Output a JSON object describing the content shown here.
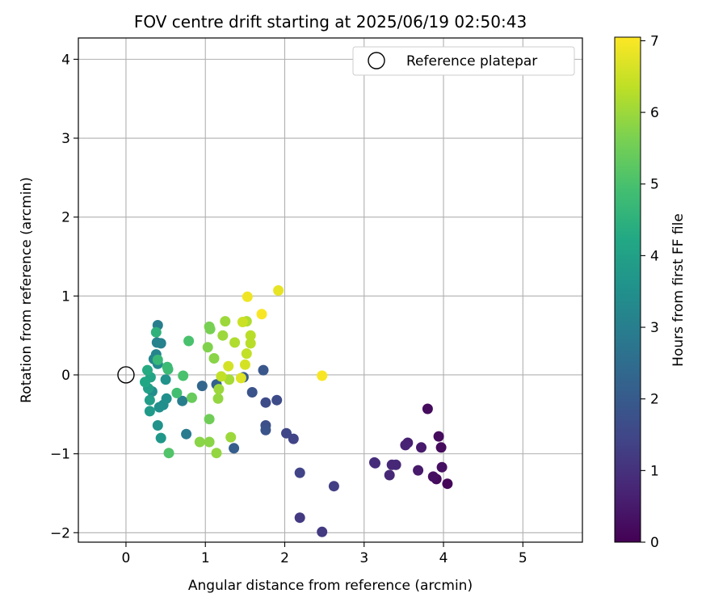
{
  "chart_data": {
    "type": "scatter",
    "title": "FOV centre drift starting at 2025/06/19 02:50:43",
    "xlabel": "Angular distance from reference (arcmin)",
    "ylabel": "Rotation from reference (arcmin)",
    "xlim": [
      -0.6,
      5.75
    ],
    "ylim": [
      -2.12,
      4.27
    ],
    "xticks": [
      "0",
      "1",
      "2",
      "3",
      "4",
      "5"
    ],
    "yticks": [
      "−2",
      "−1",
      "0",
      "1",
      "2",
      "3",
      "4"
    ],
    "grid": true,
    "legend": {
      "position": "top-right",
      "entries": [
        "Reference platepar"
      ]
    },
    "reference_point": {
      "x": 0,
      "y": 0
    },
    "colorbar": {
      "label": "Hours from first FF file",
      "colormap": "viridis",
      "range": [
        0,
        7.05
      ],
      "ticks": [
        "0",
        "1",
        "2",
        "3",
        "4",
        "5",
        "6",
        "7"
      ]
    },
    "points": [
      {
        "x": 4.05,
        "y": -1.38,
        "h": 0.1
      },
      {
        "x": 3.91,
        "y": -1.32,
        "h": 0.2
      },
      {
        "x": 3.87,
        "y": -1.29,
        "h": 0.3
      },
      {
        "x": 3.98,
        "y": -1.17,
        "h": 0.3
      },
      {
        "x": 3.97,
        "y": -0.92,
        "h": 0.2
      },
      {
        "x": 3.94,
        "y": -0.78,
        "h": 0.2
      },
      {
        "x": 3.8,
        "y": -0.43,
        "h": 0.2
      },
      {
        "x": 3.72,
        "y": -0.92,
        "h": 0.5
      },
      {
        "x": 3.68,
        "y": -1.21,
        "h": 0.5
      },
      {
        "x": 3.55,
        "y": -0.86,
        "h": 0.6
      },
      {
        "x": 3.52,
        "y": -0.89,
        "h": 0.7
      },
      {
        "x": 3.4,
        "y": -1.14,
        "h": 0.8
      },
      {
        "x": 3.35,
        "y": -1.14,
        "h": 0.8
      },
      {
        "x": 3.32,
        "y": -1.27,
        "h": 0.8
      },
      {
        "x": 3.14,
        "y": -1.12,
        "h": 0.9
      },
      {
        "x": 3.13,
        "y": -1.11,
        "h": 0.9
      },
      {
        "x": 2.47,
        "y": -1.99,
        "h": 1.2
      },
      {
        "x": 2.19,
        "y": -1.81,
        "h": 1.2
      },
      {
        "x": 2.62,
        "y": -1.41,
        "h": 1.3
      },
      {
        "x": 2.19,
        "y": -1.24,
        "h": 1.4
      },
      {
        "x": 2.11,
        "y": -0.81,
        "h": 1.4
      },
      {
        "x": 2.02,
        "y": -0.74,
        "h": 1.5
      },
      {
        "x": 1.9,
        "y": -0.32,
        "h": 1.6
      },
      {
        "x": 1.76,
        "y": -0.35,
        "h": 1.6
      },
      {
        "x": 1.76,
        "y": -0.64,
        "h": 1.7
      },
      {
        "x": 1.76,
        "y": -0.7,
        "h": 1.8
      },
      {
        "x": 1.59,
        "y": -0.22,
        "h": 1.8
      },
      {
        "x": 1.73,
        "y": 0.06,
        "h": 1.9
      },
      {
        "x": 1.48,
        "y": -0.03,
        "h": 2.0
      },
      {
        "x": 1.36,
        "y": -0.93,
        "h": 2.1
      },
      {
        "x": 1.14,
        "y": -0.12,
        "h": 2.2
      },
      {
        "x": 0.96,
        "y": -0.14,
        "h": 2.3
      },
      {
        "x": 0.76,
        "y": -0.75,
        "h": 2.9
      },
      {
        "x": 0.71,
        "y": -0.33,
        "h": 3.0
      },
      {
        "x": 0.4,
        "y": 0.63,
        "h": 3.0
      },
      {
        "x": 0.44,
        "y": 0.4,
        "h": 3.1
      },
      {
        "x": 0.39,
        "y": 0.41,
        "h": 3.1
      },
      {
        "x": 0.38,
        "y": 0.26,
        "h": 3.2
      },
      {
        "x": 0.35,
        "y": 0.2,
        "h": 3.2
      },
      {
        "x": 0.4,
        "y": 0.14,
        "h": 3.3
      },
      {
        "x": 0.33,
        "y": -0.21,
        "h": 3.4
      },
      {
        "x": 0.47,
        "y": -0.38,
        "h": 3.4
      },
      {
        "x": 0.42,
        "y": -0.41,
        "h": 3.5
      },
      {
        "x": 0.51,
        "y": -0.3,
        "h": 3.5
      },
      {
        "x": 0.5,
        "y": -0.06,
        "h": 3.6
      },
      {
        "x": 0.4,
        "y": -0.64,
        "h": 3.6
      },
      {
        "x": 0.44,
        "y": -0.8,
        "h": 3.7
      },
      {
        "x": 0.3,
        "y": -0.46,
        "h": 3.8
      },
      {
        "x": 0.3,
        "y": -0.32,
        "h": 3.9
      },
      {
        "x": 0.28,
        "y": -0.17,
        "h": 4.0
      },
      {
        "x": 0.31,
        "y": -0.03,
        "h": 4.1
      },
      {
        "x": 0.24,
        "y": -0.09,
        "h": 4.2
      },
      {
        "x": 0.27,
        "y": 0.06,
        "h": 4.3
      },
      {
        "x": 0.38,
        "y": 0.54,
        "h": 4.5
      },
      {
        "x": 0.4,
        "y": 0.19,
        "h": 4.7
      },
      {
        "x": 0.52,
        "y": 0.1,
        "h": 4.8
      },
      {
        "x": 0.53,
        "y": 0.07,
        "h": 4.8
      },
      {
        "x": 0.64,
        "y": -0.23,
        "h": 4.9
      },
      {
        "x": 0.72,
        "y": -0.01,
        "h": 5.0
      },
      {
        "x": 0.79,
        "y": 0.43,
        "h": 5.0
      },
      {
        "x": 0.54,
        "y": -0.99,
        "h": 5.1
      },
      {
        "x": 0.83,
        "y": -0.29,
        "h": 5.4
      },
      {
        "x": 1.05,
        "y": -0.56,
        "h": 5.5
      },
      {
        "x": 1.05,
        "y": 0.61,
        "h": 5.6
      },
      {
        "x": 1.06,
        "y": 0.58,
        "h": 5.6
      },
      {
        "x": 1.03,
        "y": 0.35,
        "h": 5.7
      },
      {
        "x": 1.11,
        "y": 0.21,
        "h": 5.8
      },
      {
        "x": 0.93,
        "y": -0.85,
        "h": 5.8
      },
      {
        "x": 1.05,
        "y": -0.85,
        "h": 5.8
      },
      {
        "x": 1.14,
        "y": -0.99,
        "h": 5.9
      },
      {
        "x": 1.16,
        "y": -0.3,
        "h": 5.9
      },
      {
        "x": 1.17,
        "y": -0.18,
        "h": 6.0
      },
      {
        "x": 1.32,
        "y": -0.79,
        "h": 6.0
      },
      {
        "x": 1.25,
        "y": 0.68,
        "h": 6.0
      },
      {
        "x": 1.22,
        "y": 0.5,
        "h": 6.0
      },
      {
        "x": 1.3,
        "y": -0.06,
        "h": 6.1
      },
      {
        "x": 1.37,
        "y": 0.41,
        "h": 6.2
      },
      {
        "x": 1.52,
        "y": 0.68,
        "h": 6.2
      },
      {
        "x": 1.57,
        "y": 0.5,
        "h": 6.3
      },
      {
        "x": 1.57,
        "y": 0.4,
        "h": 6.3
      },
      {
        "x": 1.52,
        "y": 0.27,
        "h": 6.4
      },
      {
        "x": 1.2,
        "y": -0.02,
        "h": 6.4
      },
      {
        "x": 1.47,
        "y": 0.67,
        "h": 6.5
      },
      {
        "x": 1.29,
        "y": 0.11,
        "h": 6.6
      },
      {
        "x": 1.5,
        "y": 0.13,
        "h": 6.6
      },
      {
        "x": 1.45,
        "y": -0.04,
        "h": 6.7
      },
      {
        "x": 1.92,
        "y": 1.07,
        "h": 6.8
      },
      {
        "x": 1.53,
        "y": 0.99,
        "h": 6.9
      },
      {
        "x": 1.71,
        "y": 0.77,
        "h": 7.0
      },
      {
        "x": 2.47,
        "y": -0.01,
        "h": 7.0
      }
    ]
  }
}
